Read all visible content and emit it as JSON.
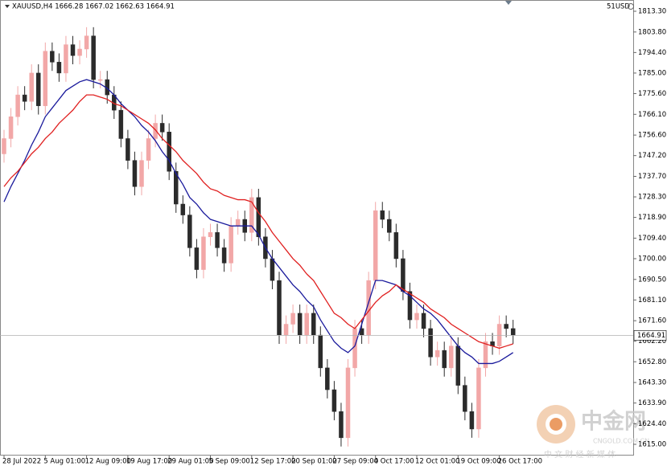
{
  "chart_data": {
    "type": "candlestick",
    "title": "XAUUSD,H4 1666.28 1667.02 1662.63 1664.91",
    "account": "51USD",
    "up_color": "#f2a7a7",
    "down_color": "#2b2b2b",
    "ylim": [
      1609.85,
      1818.45
    ],
    "yticks": [
      {
        "value": 1813.3,
        "label": "1813.30"
      },
      {
        "value": 1803.8,
        "label": "1803.80"
      },
      {
        "value": 1794.4,
        "label": "1794.40"
      },
      {
        "value": 1785,
        "label": "1785.00"
      },
      {
        "value": 1775.6,
        "label": "1775.60"
      },
      {
        "value": 1766.1,
        "label": "1766.10"
      },
      {
        "value": 1756.6,
        "label": "1756.60"
      },
      {
        "value": 1747.2,
        "label": "1747.20"
      },
      {
        "value": 1737.7,
        "label": "1737.70"
      },
      {
        "value": 1728.3,
        "label": "1728.30"
      },
      {
        "value": 1718.9,
        "label": "1718.90"
      },
      {
        "value": 1709.4,
        "label": "1709.40"
      },
      {
        "value": 1700,
        "label": "1700.00"
      },
      {
        "value": 1690.5,
        "label": "1690.50"
      },
      {
        "value": 1681.1,
        "label": "1681.10"
      },
      {
        "value": 1671.6,
        "label": "1671.60"
      },
      {
        "value": 1662.2,
        "label": "1662.20"
      },
      {
        "value": 1652.8,
        "label": "1652.80"
      },
      {
        "value": 1643.3,
        "label": "1643.30"
      },
      {
        "value": 1633.9,
        "label": "1633.90"
      },
      {
        "value": 1624.4,
        "label": "1624.40"
      },
      {
        "value": 1615,
        "label": "1615.00"
      }
    ],
    "current_price": {
      "value": 1664.91,
      "label": "1664.91"
    },
    "categories": [
      "28 Jul 2022",
      null,
      null,
      null,
      null,
      null,
      "5 Aug 01:00",
      null,
      null,
      null,
      null,
      null,
      "12 Aug 09:00",
      null,
      null,
      null,
      null,
      null,
      "19 Aug 17:00",
      null,
      null,
      null,
      null,
      null,
      "29 Aug 01:00",
      null,
      null,
      null,
      null,
      null,
      "5 Sep 09:00",
      null,
      null,
      null,
      null,
      null,
      "12 Sep 17:00",
      null,
      null,
      null,
      null,
      null,
      "20 Sep 01:00",
      null,
      null,
      null,
      null,
      null,
      "27 Sep 09:00",
      null,
      null,
      null,
      null,
      null,
      "4 Oct 17:00",
      null,
      null,
      null,
      null,
      null,
      "12 Oct 01:00",
      null,
      null,
      null,
      null,
      null,
      "19 Oct 09:00",
      null,
      null,
      null,
      null,
      null,
      "26 Oct 17:00",
      null,
      null
    ],
    "open": [
      1748,
      1755,
      1765,
      1775,
      1772,
      1785,
      1770,
      1795,
      1790,
      1785,
      1798,
      1793,
      1796,
      1802,
      1782,
      1782,
      1775,
      1768,
      1755,
      1745,
      1733,
      1745,
      1755,
      1762,
      1758,
      1740,
      1725,
      1720,
      1705,
      1695,
      1710,
      1712,
      1705,
      1698,
      1715,
      1718,
      1712,
      1728,
      1710,
      1700,
      1690,
      1665,
      1670,
      1675,
      1665,
      1675,
      1665,
      1650,
      1640,
      1630,
      1618,
      1650,
      1668,
      1665,
      1690,
      1722,
      1718,
      1712,
      1700,
      1685,
      1672,
      1675,
      1668,
      1655,
      1658,
      1650,
      1660,
      1642,
      1630,
      1622,
      1650,
      1662,
      1660,
      1670,
      1668
    ],
    "high": [
      1759,
      1769,
      1779,
      1779,
      1789,
      1789,
      1799,
      1799,
      1794,
      1802,
      1802,
      1800,
      1806,
      1806,
      1786,
      1786,
      1779,
      1772,
      1759,
      1749,
      1749,
      1759,
      1766,
      1766,
      1762,
      1744,
      1729,
      1724,
      1709,
      1714,
      1716,
      1716,
      1709,
      1719,
      1722,
      1722,
      1732,
      1732,
      1714,
      1704,
      1694,
      1674,
      1679,
      1679,
      1679,
      1679,
      1669,
      1654,
      1644,
      1634,
      1654,
      1672,
      1672,
      1694,
      1726,
      1726,
      1722,
      1716,
      1704,
      1689,
      1679,
      1679,
      1672,
      1662,
      1662,
      1664,
      1664,
      1646,
      1634,
      1654,
      1666,
      1666,
      1674,
      1674,
      1672
    ],
    "low": [
      1744,
      1751,
      1761,
      1768,
      1768,
      1766,
      1766,
      1786,
      1781,
      1781,
      1789,
      1789,
      1792,
      1778,
      1778,
      1771,
      1764,
      1751,
      1741,
      1729,
      1729,
      1741,
      1751,
      1754,
      1736,
      1721,
      1716,
      1701,
      1691,
      1691,
      1706,
      1701,
      1694,
      1694,
      1711,
      1708,
      1708,
      1706,
      1696,
      1686,
      1661,
      1661,
      1666,
      1661,
      1661,
      1661,
      1646,
      1636,
      1626,
      1614,
      1614,
      1646,
      1661,
      1661,
      1686,
      1714,
      1708,
      1696,
      1681,
      1668,
      1668,
      1664,
      1651,
      1651,
      1646,
      1646,
      1638,
      1626,
      1618,
      1618,
      1646,
      1656,
      1656,
      1664,
      1661
    ],
    "close": [
      1755,
      1765,
      1775,
      1772,
      1785,
      1770,
      1795,
      1790,
      1785,
      1798,
      1793,
      1796,
      1802,
      1782,
      1782,
      1775,
      1768,
      1755,
      1745,
      1733,
      1745,
      1755,
      1762,
      1758,
      1740,
      1725,
      1720,
      1705,
      1695,
      1710,
      1712,
      1705,
      1698,
      1715,
      1718,
      1712,
      1728,
      1710,
      1700,
      1690,
      1665,
      1670,
      1675,
      1665,
      1675,
      1665,
      1650,
      1640,
      1630,
      1618,
      1650,
      1668,
      1665,
      1690,
      1722,
      1718,
      1712,
      1700,
      1685,
      1672,
      1675,
      1668,
      1655,
      1658,
      1650,
      1660,
      1642,
      1630,
      1622,
      1650,
      1662,
      1660,
      1670,
      1668,
      1664.91
    ],
    "series": [
      {
        "color": "#1a1a9c",
        "values": [
          1726,
          1733,
          1739,
          1745,
          1752,
          1758,
          1765,
          1769,
          1773,
          1777,
          1779,
          1781,
          1782,
          1781,
          1780,
          1778,
          1775,
          1771,
          1768,
          1765,
          1761,
          1758,
          1754,
          1749,
          1745,
          1739,
          1734,
          1728,
          1725,
          1721,
          1718,
          1717,
          1716,
          1715,
          1715,
          1715,
          1715,
          1711,
          1705,
          1700,
          1696,
          1692,
          1688,
          1685,
          1681,
          1678,
          1672,
          1667,
          1662,
          1659,
          1657,
          1660,
          1670,
          1680,
          1690,
          1690,
          1689,
          1688,
          1685,
          1683,
          1680,
          1677,
          1675,
          1672,
          1668,
          1664,
          1660,
          1657,
          1655,
          1652,
          1652,
          1652,
          1653,
          1655,
          1657
        ]
      },
      {
        "color": "#e02020",
        "values": [
          1733,
          1737,
          1740,
          1744,
          1748,
          1751,
          1755,
          1758,
          1762,
          1765,
          1768,
          1772,
          1775,
          1775,
          1774,
          1773,
          1771,
          1770,
          1768,
          1766,
          1764,
          1762,
          1759,
          1755,
          1752,
          1749,
          1745,
          1742,
          1739,
          1735,
          1732,
          1731,
          1729,
          1728,
          1727,
          1727,
          1726,
          1721,
          1717,
          1712,
          1708,
          1704,
          1700,
          1697,
          1693,
          1690,
          1685,
          1680,
          1675,
          1673,
          1670,
          1668,
          1672,
          1676,
          1680,
          1683,
          1685,
          1688,
          1686,
          1684,
          1682,
          1680,
          1677,
          1675,
          1673,
          1670,
          1668,
          1666,
          1664,
          1662,
          1661,
          1660,
          1659,
          1660,
          1661
        ]
      }
    ]
  },
  "watermark": {
    "brand": "中金网",
    "site": "CNGOLD.COM.CN",
    "tagline": "中 文 财 经 新 媒 体"
  }
}
